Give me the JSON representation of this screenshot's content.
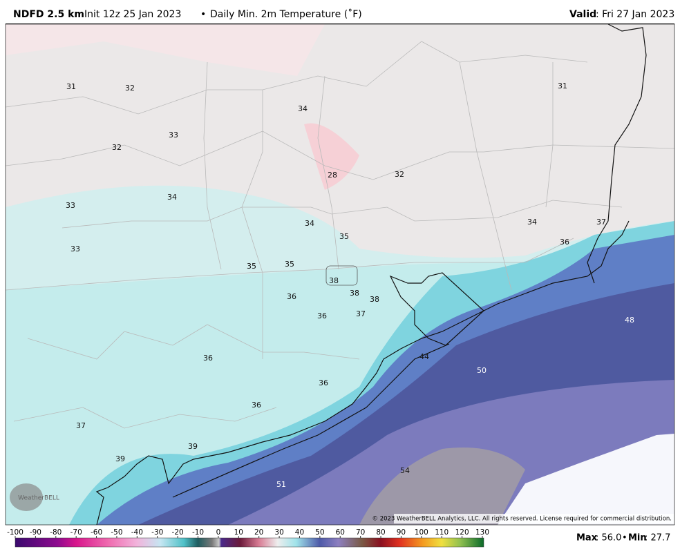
{
  "header": {
    "model": "NDFD 2.5 km",
    "init": "Init 12z 25 Jan 2023",
    "separator": "•",
    "product": "Daily Min. 2m Temperature (˚F)",
    "valid_label": "Valid",
    "valid_date": ": Fri 27 Jan 2023"
  },
  "map": {
    "labels": [
      31,
      32,
      34,
      31,
      33,
      32,
      28,
      32,
      33,
      34,
      34,
      35,
      34,
      37,
      36,
      33,
      35,
      35,
      38,
      38,
      38,
      36,
      36,
      37,
      48,
      44,
      50,
      36,
      36,
      36,
      37,
      39,
      39,
      54,
      51
    ],
    "logo": "WeatherBELL",
    "copyright": "© 2023 WeatherBELL Analytics, LLC. All rights reserved. License required for commercial distribution."
  },
  "colorbar": {
    "ticks": [
      -100,
      -90,
      -80,
      -70,
      -60,
      -50,
      -40,
      -30,
      -20,
      -10,
      0,
      10,
      20,
      30,
      40,
      50,
      60,
      70,
      80,
      90,
      100,
      110,
      120,
      130
    ]
  },
  "footer": {
    "max_label": "Max",
    "max_value": ": 56.0",
    "separator": "•",
    "min_label": "Min",
    "min_value": ": 27.7"
  }
}
